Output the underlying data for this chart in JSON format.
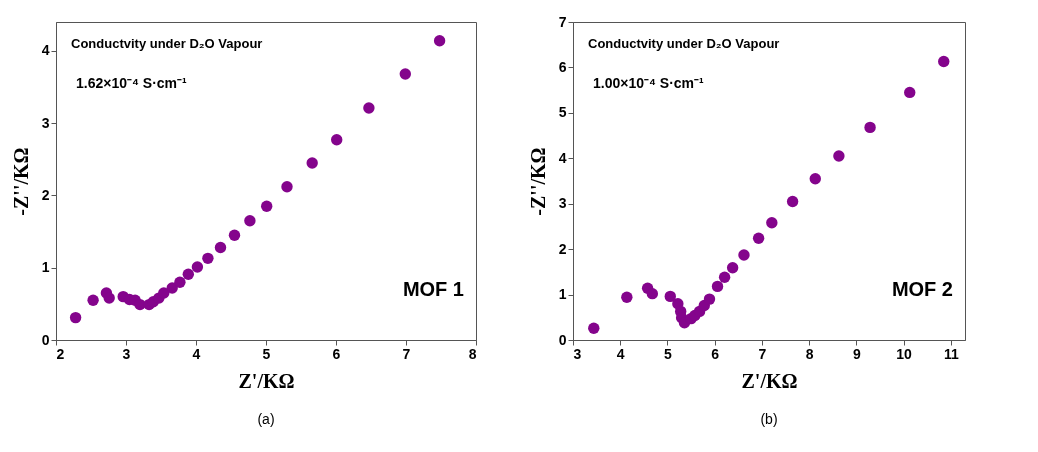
{
  "chart_data": [
    {
      "type": "scatter",
      "xlabel": "Z'/KΩ",
      "ylabel": "-Z''/KΩ",
      "marker": "circle",
      "xlim": [
        2,
        8
      ],
      "ylim": [
        0,
        4.4
      ],
      "xticks": [
        2,
        3,
        4,
        5,
        6,
        7,
        8
      ],
      "yticks": [
        0,
        1,
        2,
        3,
        4
      ],
      "grid": false,
      "legend": false,
      "annotations": [
        "Conductvity under D₂O Vapour",
        "1.62×10⁻⁴ S·cm⁻¹",
        "MOF 1",
        "(a)"
      ],
      "x": [
        2.28,
        2.53,
        2.72,
        2.76,
        2.96,
        3.05,
        3.13,
        3.2,
        3.27,
        3.33,
        3.39,
        3.47,
        3.54,
        3.66,
        3.77,
        3.89,
        4.02,
        4.17,
        4.35,
        4.55,
        4.77,
        5.01,
        5.3,
        5.66,
        6.01,
        6.47,
        6.99,
        7.48
      ],
      "series": [
        {
          "color": "#84048c",
          "values": [
            0.31,
            0.55,
            0.65,
            0.58,
            0.6,
            0.56,
            0.55,
            0.49,
            null,
            0.49,
            0.53,
            0.58,
            0.65,
            0.72,
            0.8,
            0.91,
            1.01,
            1.13,
            1.28,
            1.45,
            1.65,
            1.85,
            2.12,
            2.45,
            2.77,
            3.21,
            3.68,
            4.14
          ]
        }
      ]
    },
    {
      "type": "scatter",
      "xlabel": "Z'/KΩ",
      "ylabel": "-Z''/KΩ",
      "marker": "circle",
      "xlim": [
        3,
        11.3
      ],
      "ylim": [
        0,
        7
      ],
      "xticks": [
        3,
        4,
        5,
        6,
        7,
        8,
        9,
        10,
        11
      ],
      "yticks": [
        0,
        1,
        2,
        3,
        4,
        5,
        6,
        7
      ],
      "grid": false,
      "legend": false,
      "annotations": [
        "Conductvity under D₂O Vapour",
        "1.00×10⁻⁴ S·cm⁻¹",
        "MOF 2",
        "(b)"
      ],
      "x": [
        3.44,
        4.14,
        4.58,
        4.68,
        5.06,
        5.22,
        5.28,
        5.3,
        5.36,
        5.5,
        5.58,
        5.68,
        5.78,
        5.89,
        6.06,
        6.21,
        6.38,
        6.62,
        6.93,
        7.21,
        7.65,
        8.13,
        8.63,
        9.29,
        10.13,
        10.85
      ],
      "series": [
        {
          "color": "#84048c",
          "values": [
            0.26,
            0.94,
            1.14,
            1.02,
            0.96,
            0.8,
            0.63,
            0.49,
            0.38,
            0.47,
            0.54,
            0.63,
            0.76,
            0.9,
            1.18,
            1.38,
            1.59,
            1.87,
            2.24,
            2.58,
            3.05,
            3.55,
            4.05,
            4.68,
            5.45,
            6.13
          ]
        }
      ]
    }
  ]
}
